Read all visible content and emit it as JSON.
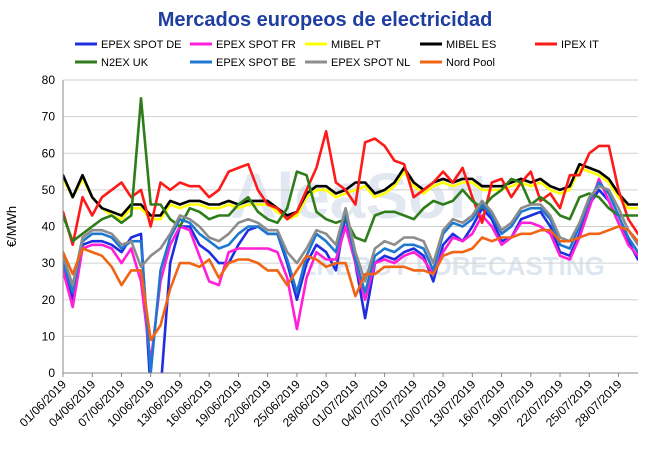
{
  "chart_data": {
    "type": "line",
    "title": "Mercados europeos de electricidad",
    "xlabel": "",
    "ylabel": "€/MWh",
    "ylim": [
      0,
      80
    ],
    "yticks": [
      0,
      10,
      20,
      30,
      40,
      50,
      60,
      70,
      80
    ],
    "grid": true,
    "legend_position": "top",
    "watermark": {
      "main": "AleaSoft",
      "sub": "ENERGY FORECASTING"
    },
    "x": [
      "01/06/2019",
      "02/06/2019",
      "03/06/2019",
      "04/06/2019",
      "05/06/2019",
      "06/06/2019",
      "07/06/2019",
      "08/06/2019",
      "09/06/2019",
      "10/06/2019",
      "11/06/2019",
      "12/06/2019",
      "13/06/2019",
      "14/06/2019",
      "15/06/2019",
      "16/06/2019",
      "17/06/2019",
      "18/06/2019",
      "19/06/2019",
      "20/06/2019",
      "21/06/2019",
      "22/06/2019",
      "23/06/2019",
      "24/06/2019",
      "25/06/2019",
      "26/06/2019",
      "27/06/2019",
      "28/06/2019",
      "29/06/2019",
      "30/06/2019",
      "01/07/2019",
      "02/07/2019",
      "03/07/2019",
      "04/07/2019",
      "05/07/2019",
      "06/07/2019",
      "07/07/2019",
      "08/07/2019",
      "09/07/2019",
      "10/07/2019",
      "11/07/2019",
      "12/07/2019",
      "13/07/2019",
      "14/07/2019",
      "15/07/2019",
      "16/07/2019",
      "17/07/2019",
      "18/07/2019",
      "19/07/2019",
      "20/07/2019",
      "21/07/2019",
      "22/07/2019",
      "23/07/2019",
      "24/07/2019",
      "25/07/2019",
      "26/07/2019",
      "27/07/2019",
      "28/07/2019",
      "29/07/2019",
      "30/07/2019"
    ],
    "tick_labels": [
      "01/06/2019",
      "04/06/2019",
      "07/06/2019",
      "10/06/2019",
      "13/06/2019",
      "16/06/2019",
      "19/06/2019",
      "22/06/2019",
      "25/06/2019",
      "28/06/2019",
      "01/07/2019",
      "04/07/2019",
      "07/07/2019",
      "10/07/2019",
      "13/07/2019",
      "16/07/2019",
      "19/07/2019",
      "22/07/2019",
      "25/07/2019",
      "28/07/2019"
    ],
    "series": [
      {
        "name": "EPEX SPOT DE",
        "color": "#1f2fe0",
        "values": [
          30,
          20,
          35,
          36,
          36,
          35,
          33,
          37,
          38,
          -5,
          -5,
          30,
          40,
          40,
          35,
          33,
          30,
          30,
          35,
          39,
          40,
          38,
          38,
          30,
          20,
          30,
          35,
          33,
          28,
          43,
          30,
          15,
          30,
          32,
          31,
          33,
          34,
          32,
          25,
          35,
          38,
          36,
          40,
          45,
          42,
          36,
          37,
          42,
          43,
          44,
          40,
          33,
          32,
          38,
          46,
          50,
          47,
          41,
          36,
          31
        ]
      },
      {
        "name": "EPEX SPOT FR",
        "color": "#ff1fd8",
        "values": [
          28,
          18,
          34,
          35,
          35,
          34,
          30,
          34,
          25,
          3,
          25,
          35,
          40,
          39,
          32,
          25,
          24,
          33,
          34,
          34,
          34,
          34,
          33,
          26,
          12,
          26,
          33,
          31,
          31,
          40,
          30,
          20,
          30,
          31,
          30,
          32,
          33,
          31,
          27,
          33,
          37,
          36,
          38,
          43,
          40,
          35,
          37,
          41,
          41,
          40,
          38,
          32,
          31,
          37,
          45,
          53,
          47,
          41,
          35,
          32
        ]
      },
      {
        "name": "MIBEL PT",
        "color": "#ffff00",
        "values": [
          53,
          48,
          53,
          48,
          45,
          43,
          42,
          45,
          45,
          42,
          42,
          46,
          45,
          46,
          46,
          45,
          45,
          46,
          45,
          46,
          46,
          46,
          44,
          42,
          43,
          48,
          50,
          50,
          48,
          49,
          50,
          51,
          48,
          49,
          51,
          55,
          51,
          49,
          51,
          52,
          51,
          52,
          52,
          50,
          50,
          50,
          51,
          52,
          51,
          52,
          50,
          49,
          50,
          56,
          55,
          54,
          52,
          48,
          45,
          45
        ]
      },
      {
        "name": "MIBEL ES",
        "color": "#000000",
        "values": [
          54,
          48,
          54,
          48,
          45,
          44,
          43,
          46,
          46,
          43,
          43,
          47,
          46,
          47,
          47,
          46,
          46,
          47,
          46,
          47,
          47,
          47,
          45,
          43,
          44,
          49,
          51,
          51,
          49,
          50,
          52,
          52,
          49,
          50,
          52,
          56,
          52,
          50,
          52,
          53,
          52,
          53,
          53,
          51,
          51,
          51,
          52,
          53,
          52,
          53,
          51,
          50,
          51,
          57,
          56,
          55,
          53,
          49,
          46,
          46
        ]
      },
      {
        "name": "IPEX IT",
        "color": "#ff1a1a",
        "values": [
          44,
          35,
          48,
          43,
          48,
          50,
          52,
          48,
          50,
          40,
          52,
          50,
          52,
          51,
          51,
          48,
          50,
          55,
          56,
          57,
          50,
          46,
          45,
          42,
          44,
          50,
          56,
          66,
          52,
          50,
          46,
          63,
          64,
          62,
          58,
          57,
          48,
          50,
          52,
          55,
          52,
          56,
          48,
          41,
          52,
          53,
          48,
          52,
          55,
          47,
          49,
          45,
          54,
          54,
          60,
          62,
          62,
          50,
          42,
          38
        ]
      },
      {
        "name": "N2EX UK",
        "color": "#2e7d1a",
        "values": [
          43,
          36,
          38,
          40,
          42,
          43,
          41,
          43,
          75,
          46,
          46,
          42,
          40,
          45,
          44,
          42,
          43,
          43,
          46,
          48,
          44,
          42,
          41,
          45,
          55,
          54,
          44,
          42,
          41,
          42,
          37,
          36,
          43,
          44,
          44,
          43,
          42,
          45,
          47,
          46,
          47,
          50,
          47,
          45,
          48,
          50,
          53,
          52,
          46,
          48,
          46,
          43,
          42,
          48,
          49,
          48,
          45,
          43,
          43,
          43
        ]
      },
      {
        "name": "EPEX SPOT BE",
        "color": "#1f78d0",
        "values": [
          30,
          22,
          36,
          38,
          38,
          37,
          34,
          36,
          36,
          0,
          28,
          37,
          42,
          41,
          38,
          36,
          34,
          35,
          38,
          40,
          40,
          38,
          38,
          31,
          22,
          32,
          38,
          36,
          33,
          44,
          31,
          22,
          32,
          34,
          33,
          35,
          35,
          34,
          28,
          38,
          41,
          40,
          42,
          46,
          43,
          38,
          40,
          44,
          45,
          45,
          42,
          35,
          34,
          40,
          47,
          52,
          49,
          43,
          37,
          33
        ]
      },
      {
        "name": "EPEX SPOT NL",
        "color": "#8c8c8c",
        "values": [
          32,
          24,
          37,
          39,
          39,
          38,
          35,
          36,
          29,
          32,
          34,
          38,
          43,
          42,
          40,
          37,
          36,
          38,
          41,
          42,
          41,
          39,
          39,
          33,
          30,
          34,
          39,
          38,
          35,
          45,
          33,
          25,
          34,
          36,
          35,
          37,
          37,
          36,
          30,
          39,
          42,
          41,
          43,
          47,
          44,
          39,
          41,
          45,
          46,
          46,
          43,
          37,
          36,
          41,
          48,
          51,
          50,
          45,
          39,
          35
        ]
      },
      {
        "name": "Nord Pool",
        "color": "#f06414",
        "values": [
          33,
          27,
          34,
          33,
          32,
          29,
          24,
          28,
          28,
          9,
          13,
          23,
          30,
          30,
          29,
          31,
          26,
          30,
          31,
          31,
          30,
          28,
          28,
          24,
          28,
          32,
          31,
          29,
          30,
          30,
          21,
          27,
          27,
          29,
          29,
          29,
          28,
          28,
          27,
          32,
          33,
          33,
          34,
          37,
          36,
          37,
          37,
          38,
          38,
          39,
          39,
          36,
          36,
          37,
          38,
          38,
          39,
          40,
          39,
          36
        ]
      }
    ]
  }
}
